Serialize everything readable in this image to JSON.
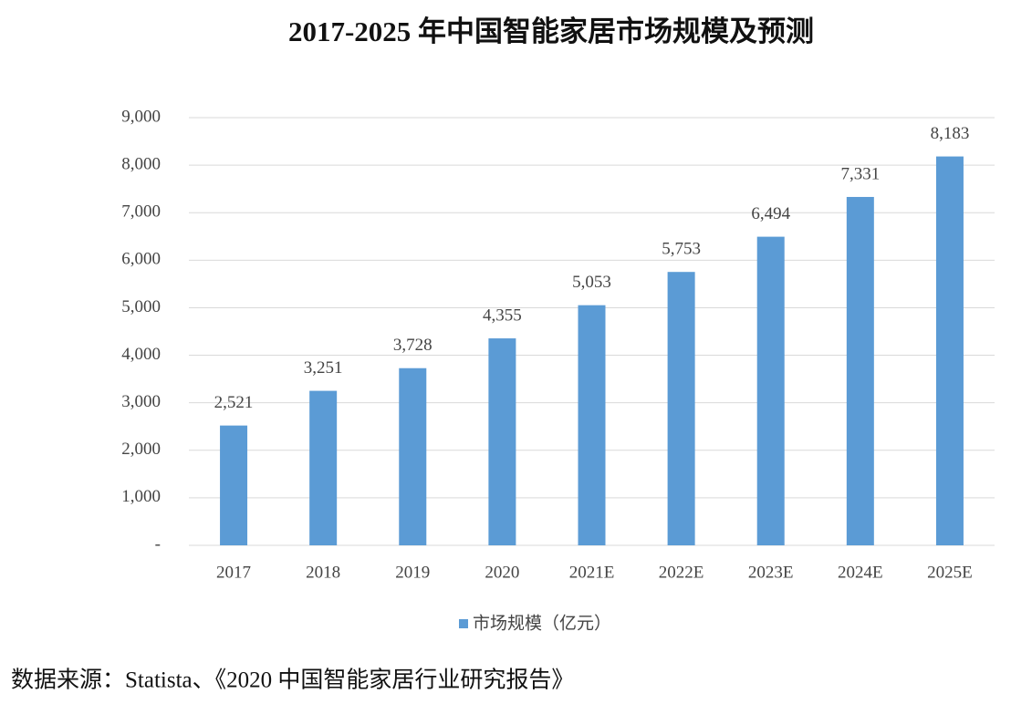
{
  "chart_data": {
    "type": "bar",
    "title": "2017-2025 年中国智能家居市场规模及预测",
    "categories": [
      "2017",
      "2018",
      "2019",
      "2020",
      "2021E",
      "2022E",
      "2023E",
      "2024E",
      "2025E"
    ],
    "series": [
      {
        "name": "市场规模（亿元）",
        "color": "#5b9bd5",
        "values": [
          2521,
          3251,
          3728,
          4355,
          5053,
          5753,
          6494,
          7331,
          8183
        ],
        "value_labels": [
          "2,521",
          "3,251",
          "3,728",
          "4,355",
          "5,053",
          "5,753",
          "6,494",
          "7,331",
          "8,183"
        ]
      }
    ],
    "ylim": [
      0,
      9000
    ],
    "yticks": [
      {
        "value": 0,
        "label": "-"
      },
      {
        "value": 1000,
        "label": "1,000"
      },
      {
        "value": 2000,
        "label": "2,000"
      },
      {
        "value": 3000,
        "label": "3,000"
      },
      {
        "value": 4000,
        "label": "4,000"
      },
      {
        "value": 5000,
        "label": "5,000"
      },
      {
        "value": 6000,
        "label": "6,000"
      },
      {
        "value": 7000,
        "label": "7,000"
      },
      {
        "value": 8000,
        "label": "8,000"
      },
      {
        "value": 9000,
        "label": "9,000"
      }
    ],
    "grid": true,
    "legend": "bottom",
    "source": "数据来源：Statista、《2020 中国智能家居行业研究报告》"
  }
}
